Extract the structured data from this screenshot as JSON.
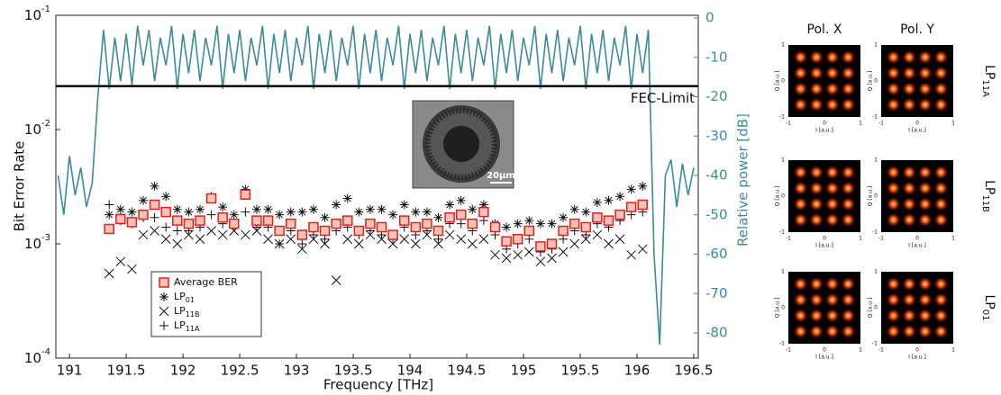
{
  "chart_data": {
    "type": "ber_spectrum",
    "xlabel": "Frequency [THz]",
    "ylabel": "Bit Error Rate",
    "y2label": "Relative power [dB]",
    "xlim": [
      190.88,
      196.54
    ],
    "xticks": [
      191,
      191.5,
      192,
      192.5,
      193,
      193.5,
      194,
      194.5,
      195,
      195.5,
      196,
      196.5
    ],
    "ylim": [
      0.0001,
      0.1
    ],
    "yscale": "log",
    "yticks": [
      {
        "value": 0.0001,
        "label": "10",
        "sup": "-4"
      },
      {
        "value": 0.001,
        "label": "10",
        "sup": "-3"
      },
      {
        "value": 0.01,
        "label": "10",
        "sup": "-2"
      },
      {
        "value": 0.1,
        "label": "10",
        "sup": "-1"
      }
    ],
    "y2lim": [
      -86.4,
      0.7
    ],
    "y2ticks": [
      0,
      -10,
      -20,
      -30,
      -40,
      -50,
      -60,
      -70,
      -80
    ],
    "y2color": "#3b8b9c",
    "grid": true,
    "fec_limit": {
      "value": 0.024,
      "label": "FEC-Limit"
    },
    "inset_scale_label": "20μm",
    "spectrum": {
      "axis": "y2",
      "color": "#3b8b9c",
      "x": [
        190.9,
        190.95,
        191,
        191.05,
        191.1,
        191.15,
        191.2,
        191.25,
        191.3,
        191.35,
        191.4,
        191.45,
        191.5,
        191.55,
        191.6,
        191.65,
        191.7,
        191.75,
        191.8,
        191.85,
        191.9,
        191.95,
        192,
        192.05,
        192.1,
        192.15,
        192.2,
        192.25,
        192.3,
        192.35,
        192.4,
        192.45,
        192.5,
        192.55,
        192.6,
        192.65,
        192.7,
        192.75,
        192.8,
        192.85,
        192.9,
        192.95,
        193,
        193.05,
        193.1,
        193.15,
        193.2,
        193.25,
        193.3,
        193.35,
        193.4,
        193.45,
        193.5,
        193.55,
        193.6,
        193.65,
        193.7,
        193.75,
        193.8,
        193.85,
        193.9,
        193.95,
        194,
        194.05,
        194.1,
        194.15,
        194.2,
        194.25,
        194.3,
        194.35,
        194.4,
        194.45,
        194.5,
        194.55,
        194.6,
        194.65,
        194.7,
        194.75,
        194.8,
        194.85,
        194.9,
        194.95,
        195,
        195.05,
        195.1,
        195.15,
        195.2,
        195.25,
        195.3,
        195.35,
        195.4,
        195.45,
        195.5,
        195.55,
        195.6,
        195.65,
        195.7,
        195.75,
        195.8,
        195.85,
        195.9,
        195.95,
        196,
        196.05,
        196.1,
        196.15,
        196.2,
        196.25,
        196.3,
        196.35,
        196.4,
        196.45,
        196.5
      ],
      "values": [
        -40,
        -50,
        -35,
        -45,
        -38,
        -48,
        -42,
        -20,
        -3,
        -18,
        -5,
        -16,
        -4,
        -17,
        -2,
        -12,
        -3,
        -16,
        -5,
        -12,
        -2,
        -18,
        -4,
        -14,
        -3,
        -16,
        -5,
        -12,
        -2,
        -18,
        -4,
        -14,
        -3,
        -16,
        -5,
        -12,
        -2,
        -18,
        -4,
        -14,
        -3,
        -16,
        -5,
        -12,
        -2,
        -18,
        -4,
        -14,
        -3,
        -16,
        -5,
        -12,
        -2,
        -18,
        -4,
        -14,
        -3,
        -16,
        -5,
        -12,
        -2,
        -18,
        -4,
        -14,
        -3,
        -16,
        -5,
        -12,
        -2,
        -18,
        -4,
        -14,
        -3,
        -16,
        -5,
        -12,
        -2,
        -18,
        -4,
        -14,
        -3,
        -16,
        -5,
        -12,
        -2,
        -18,
        -4,
        -14,
        -3,
        -16,
        -5,
        -12,
        -2,
        -18,
        -4,
        -14,
        -3,
        -16,
        -5,
        -12,
        -2,
        -18,
        -4,
        -14,
        -3,
        -60,
        -83,
        -40,
        -36,
        -48,
        -37,
        -45,
        -38
      ]
    },
    "x": [
      191.35,
      191.45,
      191.55,
      191.65,
      191.75,
      191.85,
      191.95,
      192.05,
      192.15,
      192.25,
      192.35,
      192.45,
      192.55,
      192.65,
      192.75,
      192.85,
      192.95,
      193.05,
      193.15,
      193.25,
      193.35,
      193.45,
      193.55,
      193.65,
      193.75,
      193.85,
      193.95,
      194.05,
      194.15,
      194.25,
      194.35,
      194.45,
      194.55,
      194.65,
      194.75,
      194.85,
      194.95,
      195.05,
      195.15,
      195.25,
      195.35,
      195.45,
      195.55,
      195.65,
      195.75,
      195.85,
      195.95,
      196.05
    ],
    "series": [
      {
        "name": "Average BER",
        "marker": "square",
        "color": "#e4201c",
        "values": [
          0.00135,
          0.00165,
          0.00155,
          0.0018,
          0.0022,
          0.0019,
          0.0016,
          0.0015,
          0.0016,
          0.0025,
          0.0017,
          0.0015,
          0.0027,
          0.0016,
          0.0016,
          0.0013,
          0.0015,
          0.0012,
          0.0014,
          0.0013,
          0.0015,
          0.0016,
          0.0013,
          0.0015,
          0.0014,
          0.0012,
          0.0016,
          0.0014,
          0.0015,
          0.0013,
          0.0017,
          0.0018,
          0.0015,
          0.0019,
          0.0014,
          0.00105,
          0.0011,
          0.0013,
          0.00095,
          0.001,
          0.0013,
          0.0015,
          0.0014,
          0.0017,
          0.0016,
          0.0018,
          0.0021,
          0.0022
        ]
      },
      {
        "name": "LP",
        "name_sub": "01",
        "marker": "asterisk",
        "color": "#111111",
        "values": [
          0.0018,
          0.002,
          0.0019,
          0.0024,
          0.0032,
          0.0026,
          0.002,
          0.0019,
          0.002,
          0.0026,
          0.0021,
          0.0018,
          0.003,
          0.002,
          0.002,
          0.0018,
          0.0019,
          0.0019,
          0.002,
          0.0017,
          0.0022,
          0.0025,
          0.0019,
          0.002,
          0.002,
          0.0018,
          0.0022,
          0.0019,
          0.0019,
          0.0017,
          0.0022,
          0.0024,
          0.002,
          0.0022,
          0.0015,
          0.0014,
          0.0015,
          0.0016,
          0.0015,
          0.0015,
          0.0017,
          0.002,
          0.0019,
          0.0023,
          0.0024,
          0.0026,
          0.003,
          0.0032
        ]
      },
      {
        "name": "LP",
        "name_sub": "11B",
        "marker": "cross",
        "color": "#111111",
        "values": [
          0.00055,
          0.0007,
          0.0006,
          0.0012,
          0.0013,
          0.0011,
          0.001,
          0.0012,
          0.0011,
          0.0013,
          0.0012,
          0.0013,
          0.0012,
          0.0013,
          0.0011,
          0.001,
          0.0011,
          0.0009,
          0.0011,
          0.001,
          0.00048,
          0.0011,
          0.001,
          0.0012,
          0.0011,
          0.001,
          0.0011,
          0.001,
          0.0012,
          0.001,
          0.0012,
          0.0011,
          0.001,
          0.0011,
          0.0008,
          0.00075,
          0.0008,
          0.00085,
          0.0007,
          0.00075,
          0.00085,
          0.001,
          0.0011,
          0.0012,
          0.001,
          0.0011,
          0.0008,
          0.0009
        ]
      },
      {
        "name": "LP",
        "name_sub": "11A",
        "marker": "plus",
        "color": "#111111",
        "values": [
          0.0022,
          0.0016,
          0.0015,
          0.0017,
          0.0017,
          0.0014,
          0.0013,
          0.0013,
          0.0014,
          0.0018,
          0.0015,
          0.0014,
          0.0019,
          0.0014,
          0.0014,
          0.001,
          0.0013,
          0.001,
          0.0012,
          0.0011,
          0.0013,
          0.0014,
          0.0012,
          0.0013,
          0.0012,
          0.0011,
          0.0014,
          0.0012,
          0.0013,
          0.0011,
          0.0015,
          0.0015,
          0.0013,
          0.0016,
          0.0012,
          0.0009,
          0.001,
          0.0011,
          0.00085,
          0.0009,
          0.0011,
          0.0013,
          0.0012,
          0.0015,
          0.0014,
          0.0016,
          0.0018,
          0.0019
        ]
      }
    ]
  },
  "constellations": {
    "columns": [
      "Pol. X",
      "Pol. Y"
    ],
    "rows": [
      {
        "name": "LP",
        "sub": "11A"
      },
      {
        "name": "LP",
        "sub": "11B"
      },
      {
        "name": "LP",
        "sub": "01"
      }
    ],
    "xlabel": "I [a.u.]",
    "ylabel": "Q [a.u.]",
    "ticks": [
      -1,
      0,
      1
    ]
  }
}
